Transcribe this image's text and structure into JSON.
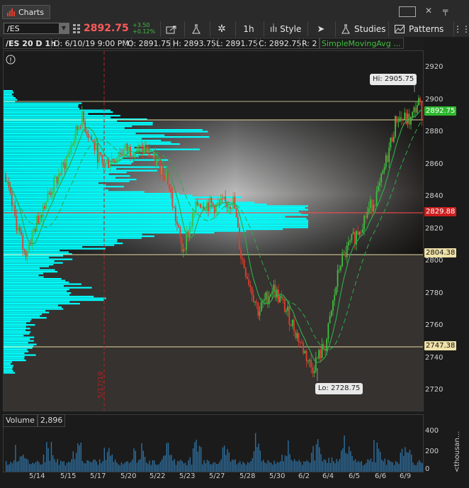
{
  "window": {
    "tab_label": "Charts"
  },
  "toolbar": {
    "symbol": "/ES",
    "last_price": "2892.75",
    "change": "+3.50",
    "change_pct": "+0.12%",
    "timeframe": "1h",
    "style_label": "Style",
    "studies_label": "Studies",
    "patterns_label": "Patterns"
  },
  "info": {
    "description": "/ES 20 D 1h",
    "date": "D: 6/10/19 9:00 PM",
    "open": "O: 2891.75",
    "high": "H: 2893.75",
    "low": "L: 2891.75",
    "close": "C: 2892.75",
    "range": "R: 2",
    "study": "SimpleMovingAvg ..."
  },
  "price_axis": {
    "labels": [
      "2920",
      "2900",
      "2880",
      "2860",
      "2840",
      "2820",
      "2800",
      "2780",
      "2760",
      "2740",
      "2720"
    ],
    "tags": {
      "last": "2892.75",
      "poc": "2829.88",
      "value_high_low": "2804.38",
      "lower": "2747.38"
    }
  },
  "callouts": {
    "hi": "Hi: 2905.75",
    "lo": "Lo: 2728.75"
  },
  "vertical_marker": "5/17/19",
  "volume": {
    "label": "Volume",
    "value": "2,896",
    "axis": [
      "400",
      "200",
      "0"
    ],
    "unit": "<thousan..."
  },
  "dates": [
    "5/14",
    "5/15",
    "5/17",
    "5/20",
    "5/22",
    "5/23",
    "5/27",
    "5/28",
    "5/30",
    "6/2",
    "6/4",
    "6/5",
    "6/6",
    "6/9"
  ],
  "colors": {
    "up": "#3fbf3f",
    "down": "#e23d2d",
    "profile": "#00ffff",
    "poc": "#ff4d4d",
    "value_line": "#e8d9a0"
  }
}
